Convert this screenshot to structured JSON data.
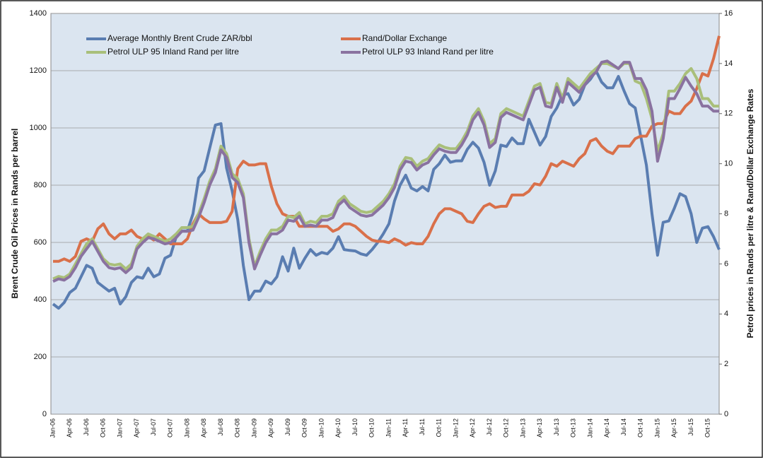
{
  "chart_data": {
    "type": "line",
    "y_label": "Brent Crude Oil Prices in Rands per barrel",
    "y2_label": "Petrol prices in Rands per litre  & Rand/Dollar Exchange Rates",
    "legend": "top",
    "grid": true,
    "ylim": [
      0,
      1400
    ],
    "yticks": [
      0,
      200,
      400,
      600,
      800,
      1000,
      1200,
      1400
    ],
    "y2lim": [
      0,
      16
    ],
    "y2ticks": [
      0,
      2,
      4,
      6,
      8,
      10,
      12,
      14,
      16
    ],
    "categories": [
      "Jan-06",
      null,
      null,
      "Apr-06",
      null,
      null,
      "Jul-06",
      null,
      null,
      "Oct-06",
      null,
      null,
      "Jan-07",
      null,
      null,
      "Apr-07",
      null,
      null,
      "Jul-07",
      null,
      null,
      "Oct-07",
      null,
      null,
      "Jan-08",
      null,
      null,
      "Apr-08",
      null,
      null,
      "Jul-08",
      null,
      null,
      "Oct-08",
      null,
      null,
      "Jan-09",
      null,
      null,
      "Apr-09",
      null,
      null,
      "Jul-09",
      null,
      null,
      "Oct-09",
      null,
      null,
      "Jan-10",
      null,
      null,
      "Apr-10",
      null,
      null,
      "Jul-10",
      null,
      null,
      "Oct-10",
      null,
      null,
      "Jan-11",
      null,
      null,
      "Apr-11",
      null,
      null,
      "Jul-11",
      null,
      null,
      "Oct-11",
      null,
      null,
      "Jan-12",
      null,
      null,
      "Apr-12",
      null,
      null,
      "Jul-12",
      null,
      null,
      "Oct-12",
      null,
      null,
      "Jan-13",
      null,
      null,
      "Apr-13",
      null,
      null,
      "Jul-13",
      null,
      null,
      "Oct-13",
      null,
      null,
      "Jan-14",
      null,
      null,
      "Apr-14",
      null,
      null,
      "Jul-14",
      null,
      null,
      "Oct-14",
      null,
      null,
      "Jan-15",
      null,
      null,
      "Apr-15",
      null,
      null,
      "Jul-15",
      null,
      null,
      "Oct-15",
      null,
      null
    ],
    "series": [
      {
        "name": "Average Monthly Brent Crude ZAR/bbl",
        "color": "#5a7db1",
        "axis": "y",
        "values": [
          385,
          370,
          390,
          425,
          440,
          480,
          520,
          510,
          460,
          445,
          430,
          440,
          385,
          410,
          460,
          480,
          475,
          510,
          480,
          490,
          545,
          555,
          620,
          640,
          640,
          700,
          825,
          850,
          930,
          1010,
          1015,
          860,
          780,
          680,
          520,
          400,
          430,
          430,
          465,
          455,
          480,
          550,
          500,
          580,
          510,
          545,
          575,
          555,
          565,
          560,
          580,
          620,
          575,
          572,
          570,
          560,
          555,
          575,
          600,
          630,
          665,
          745,
          800,
          835,
          790,
          780,
          795,
          780,
          855,
          875,
          905,
          880,
          885,
          885,
          925,
          950,
          930,
          880,
          800,
          850,
          940,
          935,
          965,
          945,
          945,
          1030,
          985,
          940,
          970,
          1040,
          1070,
          1115,
          1120,
          1080,
          1100,
          1150,
          1170,
          1200,
          1160,
          1140,
          1140,
          1180,
          1130,
          1085,
          1070,
          970,
          870,
          700,
          555,
          670,
          675,
          720,
          770,
          760,
          700,
          600,
          650,
          655,
          620,
          575
        ]
      },
      {
        "name": "Rand/Dollar Exchange",
        "color": "#d9704a",
        "axis": "y2",
        "values": [
          6.1,
          6.1,
          6.2,
          6.1,
          6.3,
          6.9,
          7.0,
          6.9,
          7.4,
          7.6,
          7.2,
          7.0,
          7.2,
          7.2,
          7.35,
          7.1,
          7.0,
          7.1,
          6.95,
          7.2,
          7.0,
          6.8,
          6.8,
          6.8,
          7.0,
          7.6,
          8.0,
          7.8,
          7.65,
          7.65,
          7.65,
          7.7,
          8.1,
          9.8,
          10.1,
          9.95,
          9.95,
          10.0,
          10.0,
          9.1,
          8.4,
          8.0,
          7.9,
          7.9,
          7.5,
          7.5,
          7.5,
          7.5,
          7.5,
          7.5,
          7.3,
          7.4,
          7.6,
          7.6,
          7.5,
          7.3,
          7.1,
          6.95,
          6.9,
          6.9,
          6.85,
          7.0,
          6.9,
          6.75,
          6.85,
          6.8,
          6.8,
          7.1,
          7.6,
          8.0,
          8.2,
          8.2,
          8.1,
          8.0,
          7.7,
          7.65,
          8.0,
          8.3,
          8.4,
          8.25,
          8.3,
          8.3,
          8.75,
          8.75,
          8.75,
          8.9,
          9.2,
          9.15,
          9.5,
          10.0,
          9.9,
          10.1,
          10.0,
          9.9,
          10.2,
          10.4,
          10.9,
          11.0,
          10.7,
          10.5,
          10.4,
          10.7,
          10.7,
          10.7,
          11.0,
          11.1,
          11.1,
          11.5,
          11.6,
          11.6,
          12.1,
          12.0,
          12.0,
          12.3,
          12.5,
          13.0,
          13.6,
          13.5,
          14.2,
          15.1
        ]
      },
      {
        "name": "Petrol ULP 95 Inland Rand per litre",
        "color": "#a9bf7a",
        "axis": "y2",
        "values": [
          5.4,
          5.5,
          5.45,
          5.6,
          6.0,
          6.4,
          6.8,
          7.0,
          6.6,
          6.2,
          6.0,
          5.95,
          6.0,
          5.8,
          6.0,
          6.7,
          7.0,
          7.2,
          7.1,
          7.0,
          6.9,
          7.0,
          7.2,
          7.45,
          7.45,
          7.5,
          8.0,
          8.6,
          9.3,
          9.8,
          10.7,
          10.4,
          9.6,
          9.4,
          8.8,
          7.0,
          5.9,
          6.5,
          7.0,
          7.35,
          7.35,
          7.5,
          7.9,
          7.85,
          8.05,
          7.6,
          7.7,
          7.65,
          7.9,
          7.9,
          8.0,
          8.5,
          8.7,
          8.4,
          8.25,
          8.1,
          8.05,
          8.1,
          8.3,
          8.5,
          8.8,
          9.2,
          9.9,
          10.25,
          10.2,
          9.9,
          10.1,
          10.2,
          10.5,
          10.75,
          10.65,
          10.6,
          10.6,
          10.9,
          11.3,
          11.9,
          12.2,
          11.7,
          10.8,
          11.0,
          12.0,
          12.2,
          12.1,
          12.0,
          11.9,
          12.5,
          13.1,
          13.2,
          12.45,
          12.4,
          13.2,
          12.6,
          13.4,
          13.2,
          13.0,
          13.3,
          13.6,
          13.8,
          14.0,
          14.0,
          13.9,
          13.8,
          14.0,
          14.0,
          13.3,
          13.2,
          12.6,
          11.8,
          10.5,
          11.2,
          12.9,
          12.9,
          13.2,
          13.6,
          13.8,
          13.4,
          12.6,
          12.6,
          12.3,
          12.3
        ]
      },
      {
        "name": "Petrol ULP 93 Inland Rand per litre",
        "color": "#8a72a0",
        "axis": "y2",
        "values": [
          5.3,
          5.4,
          5.35,
          5.5,
          5.85,
          6.3,
          6.6,
          6.9,
          6.5,
          6.1,
          5.85,
          5.8,
          5.85,
          5.65,
          5.85,
          6.6,
          6.85,
          7.05,
          7.0,
          6.9,
          6.8,
          6.85,
          7.05,
          7.3,
          7.3,
          7.35,
          7.85,
          8.45,
          9.15,
          9.65,
          10.55,
          10.25,
          9.45,
          9.25,
          8.65,
          6.85,
          5.8,
          6.35,
          6.85,
          7.2,
          7.2,
          7.35,
          7.75,
          7.7,
          7.9,
          7.5,
          7.55,
          7.5,
          7.75,
          7.75,
          7.85,
          8.35,
          8.55,
          8.25,
          8.1,
          7.95,
          7.9,
          7.95,
          8.15,
          8.35,
          8.65,
          9.05,
          9.75,
          10.1,
          10.05,
          9.75,
          9.95,
          10.05,
          10.35,
          10.6,
          10.5,
          10.45,
          10.45,
          10.75,
          11.15,
          11.75,
          12.05,
          11.55,
          10.65,
          10.85,
          11.85,
          12.05,
          11.95,
          11.85,
          11.75,
          12.35,
          12.95,
          13.05,
          12.3,
          12.25,
          13.05,
          12.45,
          13.25,
          13.05,
          12.85,
          13.15,
          13.45,
          13.65,
          14.05,
          14.1,
          13.95,
          13.8,
          14.05,
          14.05,
          13.4,
          13.4,
          12.95,
          12.1,
          10.1,
          11.0,
          12.6,
          12.6,
          13.0,
          13.45,
          13.1,
          12.8,
          12.3,
          12.3,
          12.1,
          12.1
        ]
      }
    ]
  }
}
